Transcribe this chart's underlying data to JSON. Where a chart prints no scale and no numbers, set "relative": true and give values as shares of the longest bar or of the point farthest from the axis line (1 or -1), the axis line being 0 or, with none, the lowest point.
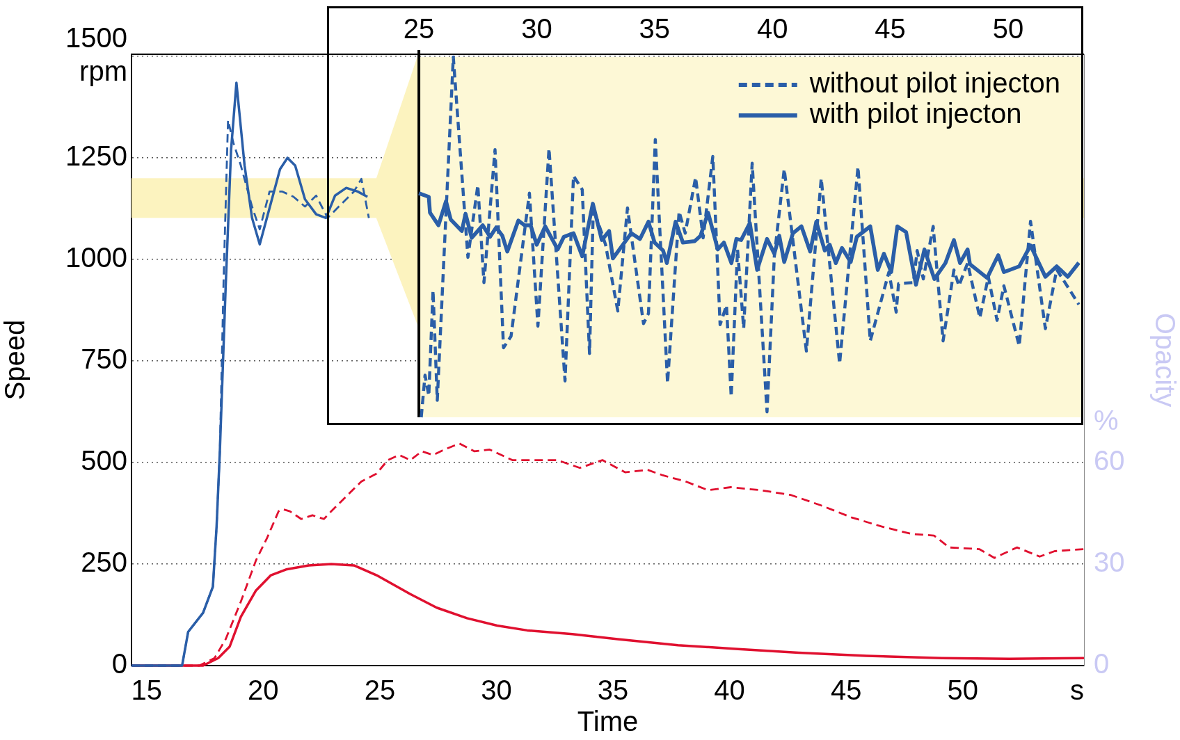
{
  "chart_data": [
    {
      "type": "line",
      "xlabel": "Time",
      "ylabel": "Speed",
      "y2label": "Opacity",
      "xlim": [
        14.35,
        55.2
      ],
      "xticks": [
        15,
        20,
        25,
        30,
        35,
        40,
        45,
        50,
        {
          "value": 54.9,
          "label": "s"
        }
      ],
      "ylim": [
        0,
        1505
      ],
      "yticks": [
        {
          "value": 1500,
          "label": "1500 rpm"
        },
        1250,
        1000,
        750,
        500,
        250,
        0
      ],
      "y2lim": [
        0,
        180.6
      ],
      "y2ticks": [
        0,
        30,
        60,
        {
          "value": 72,
          "label": "%"
        }
      ],
      "grid": "y",
      "legend": false,
      "bands": [
        {
          "axis": "y",
          "from": 1102,
          "to": 1200,
          "color": "#fcf3bf"
        }
      ],
      "series": [
        {
          "color": "#2a5ea8",
          "line_style": "solid",
          "x": [
            14.35,
            16.52,
            16.78,
            17.42,
            17.84,
            18.0,
            18.14,
            18.39,
            18.62,
            18.85,
            19.2,
            19.52,
            19.85,
            20.33,
            20.72,
            21.04,
            21.37,
            21.79,
            22.27,
            22.69,
            23.08,
            23.56,
            24.05,
            24.47
          ],
          "values": [
            0,
            0,
            83,
            130,
            194,
            343,
            528,
            935,
            1269,
            1435,
            1231,
            1102,
            1037,
            1139,
            1222,
            1250,
            1231,
            1148,
            1111,
            1102,
            1157,
            1176,
            1167,
            1154
          ]
        },
        {
          "color": "#2a5ea8",
          "line_style": "dashed",
          "x": [
            14.35,
            16.52,
            16.78,
            17.42,
            17.84,
            18.0,
            18.14,
            18.3,
            18.49,
            18.72,
            19.04,
            19.52,
            19.85,
            20.27,
            20.82,
            21.3,
            21.79,
            22.27,
            22.76,
            23.24,
            23.89,
            24.21,
            24.53
          ],
          "values": [
            0,
            0,
            83,
            130,
            194,
            343,
            528,
            950,
            1343,
            1287,
            1231,
            1130,
            1074,
            1167,
            1167,
            1154,
            1130,
            1157,
            1102,
            1130,
            1167,
            1198,
            1102
          ]
        },
        {
          "color": "#e0102f",
          "line_style": "solid",
          "axis": "y2",
          "x": [
            14.35,
            17.42,
            18.07,
            18.56,
            19.04,
            19.69,
            20.33,
            20.98,
            21.95,
            22.92,
            23.89,
            24.86,
            26.31,
            27.44,
            28.74,
            30.03,
            31.32,
            33.26,
            35.2,
            37.79,
            40.37,
            42.96,
            45.87,
            49.1,
            52.0,
            55.2
          ],
          "values": [
            0,
            0,
            2.2,
            5.6,
            14.4,
            22.2,
            26.7,
            28.4,
            29.6,
            30,
            29.6,
            26.7,
            21.1,
            17.1,
            14,
            11.8,
            10.4,
            9.3,
            7.8,
            6,
            4.9,
            3.8,
            2.9,
            2.2,
            2,
            2.2
          ]
        },
        {
          "color": "#e0102f",
          "line_style": "dashed",
          "axis": "y2",
          "x": [
            14.35,
            17.26,
            17.91,
            18.39,
            19.04,
            19.69,
            20.17,
            20.66,
            20.82,
            21.14,
            21.63,
            22.11,
            22.6,
            22.92,
            23.56,
            24.21,
            24.86,
            25.34,
            25.83,
            26.31,
            26.8,
            27.28,
            27.77,
            28.41,
            29.06,
            29.71,
            30.68,
            31.32,
            32.61,
            33.58,
            34.55,
            35.52,
            36.49,
            37.14,
            38.11,
            39.08,
            40.05,
            41.34,
            42.63,
            43.93,
            45.22,
            46.51,
            47.8,
            48.77,
            49.42,
            50.71,
            51.36,
            52.33,
            53.3,
            53.94,
            55.2
          ],
          "values": [
            0,
            0,
            2.2,
            7.8,
            18.9,
            31.1,
            37.8,
            45.6,
            46.2,
            45.6,
            43.3,
            44.4,
            43.3,
            45.6,
            50,
            54.4,
            56.7,
            60.7,
            62.2,
            60.7,
            63.3,
            62.2,
            63.8,
            65.6,
            63.3,
            63.8,
            60.7,
            60.7,
            60.7,
            58.4,
            60.7,
            57.1,
            57.8,
            56.2,
            54.4,
            51.8,
            52.7,
            51.8,
            50.4,
            47.3,
            43.8,
            41.1,
            38.9,
            38.4,
            34.9,
            34.4,
            31.8,
            34.9,
            32.2,
            33.8,
            34.4
          ]
        }
      ]
    },
    {
      "type": "line",
      "relative": true,
      "legend": "top right",
      "xlim": [
        21.19,
        53.1
      ],
      "xticks": [
        25,
        30,
        35,
        40,
        45,
        50
      ],
      "tick_labels": "x",
      "bands": [
        {
          "axis": "x",
          "from": 25,
          "to": 53.1,
          "color": "#fdf8d6"
        }
      ],
      "ref_lines": [
        {
          "axis": "x",
          "value": 25,
          "color": "#000000"
        }
      ],
      "series": [
        {
          "name": "without pilot injecton",
          "color": "#2a5ea8",
          "line_style": "dashed",
          "x": [
            25.1,
            25.26,
            25.42,
            25.6,
            25.78,
            26.46,
            27.08,
            27.5,
            27.76,
            28.23,
            28.59,
            28.91,
            29.69,
            30.05,
            30.52,
            31.2,
            31.56,
            31.93,
            32.24,
            32.4,
            32.92,
            33.44,
            33.85,
            34.53,
            34.74,
            35.03,
            35.55,
            36.04,
            36.3,
            36.74,
            37.06,
            37.47,
            37.78,
            38.05,
            38.25,
            38.52,
            38.78,
            39.14,
            39.77,
            40.08,
            40.5,
            41.44,
            42.07,
            42.85,
            43.63,
            44.15,
            44.94,
            45.25,
            45.35,
            45.98,
            46.14,
            46.4,
            46.82,
            47.24,
            47.7,
            47.91,
            48.28,
            48.8,
            49.16,
            49.53,
            49.82,
            50.47,
            50.95,
            51.58,
            52.06,
            52.53,
            53.0
          ],
          "values": [
            0,
            0.117,
            0.06,
            0.352,
            0.047,
            1.0,
            0.444,
            0.644,
            0.374,
            0.743,
            0.193,
            0.225,
            0.622,
            0.253,
            0.746,
            0.101,
            0.67,
            0.632,
            0.177,
            0.581,
            0.479,
            0.295,
            0.581,
            0.26,
            0.288,
            0.771,
            0.095,
            0.571,
            0.511,
            0.666,
            0.498,
            0.724,
            0.257,
            0.311,
            0.057,
            0.466,
            0.247,
            0.705,
            0.015,
            0.447,
            0.689,
            0.184,
            0.663,
            0.149,
            0.695,
            0.212,
            0.403,
            0.292,
            0.371,
            0.374,
            0.463,
            0.384,
            0.53,
            0.212,
            0.409,
            0.365,
            0.428,
            0.276,
            0.39,
            0.269,
            0.365,
            0.198,
            0.544,
            0.246,
            0.41,
            0.362,
            0.313
          ]
        },
        {
          "name": "with pilot injecton",
          "color": "#2a5ea8",
          "line_style": "solid",
          "x": [
            25.0,
            25.42,
            25.47,
            25.83,
            26.15,
            26.35,
            26.82,
            26.98,
            27.24,
            27.71,
            28.02,
            28.28,
            28.54,
            28.75,
            29.22,
            29.48,
            29.74,
            30.0,
            30.36,
            30.89,
            31.15,
            31.56,
            31.93,
            32.38,
            32.76,
            33.07,
            33.23,
            34.01,
            34.38,
            34.74,
            35.0,
            35.36,
            35.52,
            35.89,
            36.2,
            36.7,
            36.95,
            37.27,
            37.68,
            37.94,
            38.26,
            38.47,
            38.67,
            39.04,
            39.35,
            39.77,
            40.08,
            40.29,
            40.5,
            40.87,
            41.23,
            41.6,
            41.86,
            42.22,
            42.43,
            42.69,
            42.95,
            43.32,
            43.58,
            44.15,
            44.47,
            44.73,
            45.04,
            45.3,
            45.67,
            46.09,
            46.45,
            46.87,
            47.34,
            47.7,
            47.96,
            48.28,
            48.38,
            49.11,
            49.58,
            49.82,
            50.47,
            50.95,
            51.58,
            52.06,
            52.53,
            53.0
          ],
          "values": [
            0.622,
            0.612,
            0.568,
            0.533,
            0.6,
            0.549,
            0.517,
            0.565,
            0.498,
            0.533,
            0.501,
            0.527,
            0.504,
            0.46,
            0.546,
            0.533,
            0.533,
            0.479,
            0.53,
            0.466,
            0.501,
            0.511,
            0.447,
            0.593,
            0.492,
            0.517,
            0.441,
            0.511,
            0.495,
            0.543,
            0.485,
            0.463,
            0.428,
            0.543,
            0.485,
            0.489,
            0.504,
            0.568,
            0.466,
            0.485,
            0.428,
            0.495,
            0.492,
            0.539,
            0.409,
            0.495,
            0.454,
            0.504,
            0.431,
            0.511,
            0.53,
            0.46,
            0.543,
            0.463,
            0.479,
            0.428,
            0.47,
            0.431,
            0.501,
            0.53,
            0.409,
            0.454,
            0.403,
            0.53,
            0.514,
            0.368,
            0.466,
            0.384,
            0.428,
            0.492,
            0.428,
            0.466,
            0.425,
            0.387,
            0.45,
            0.403,
            0.419,
            0.477,
            0.39,
            0.419,
            0.39,
            0.429
          ]
        }
      ]
    }
  ]
}
